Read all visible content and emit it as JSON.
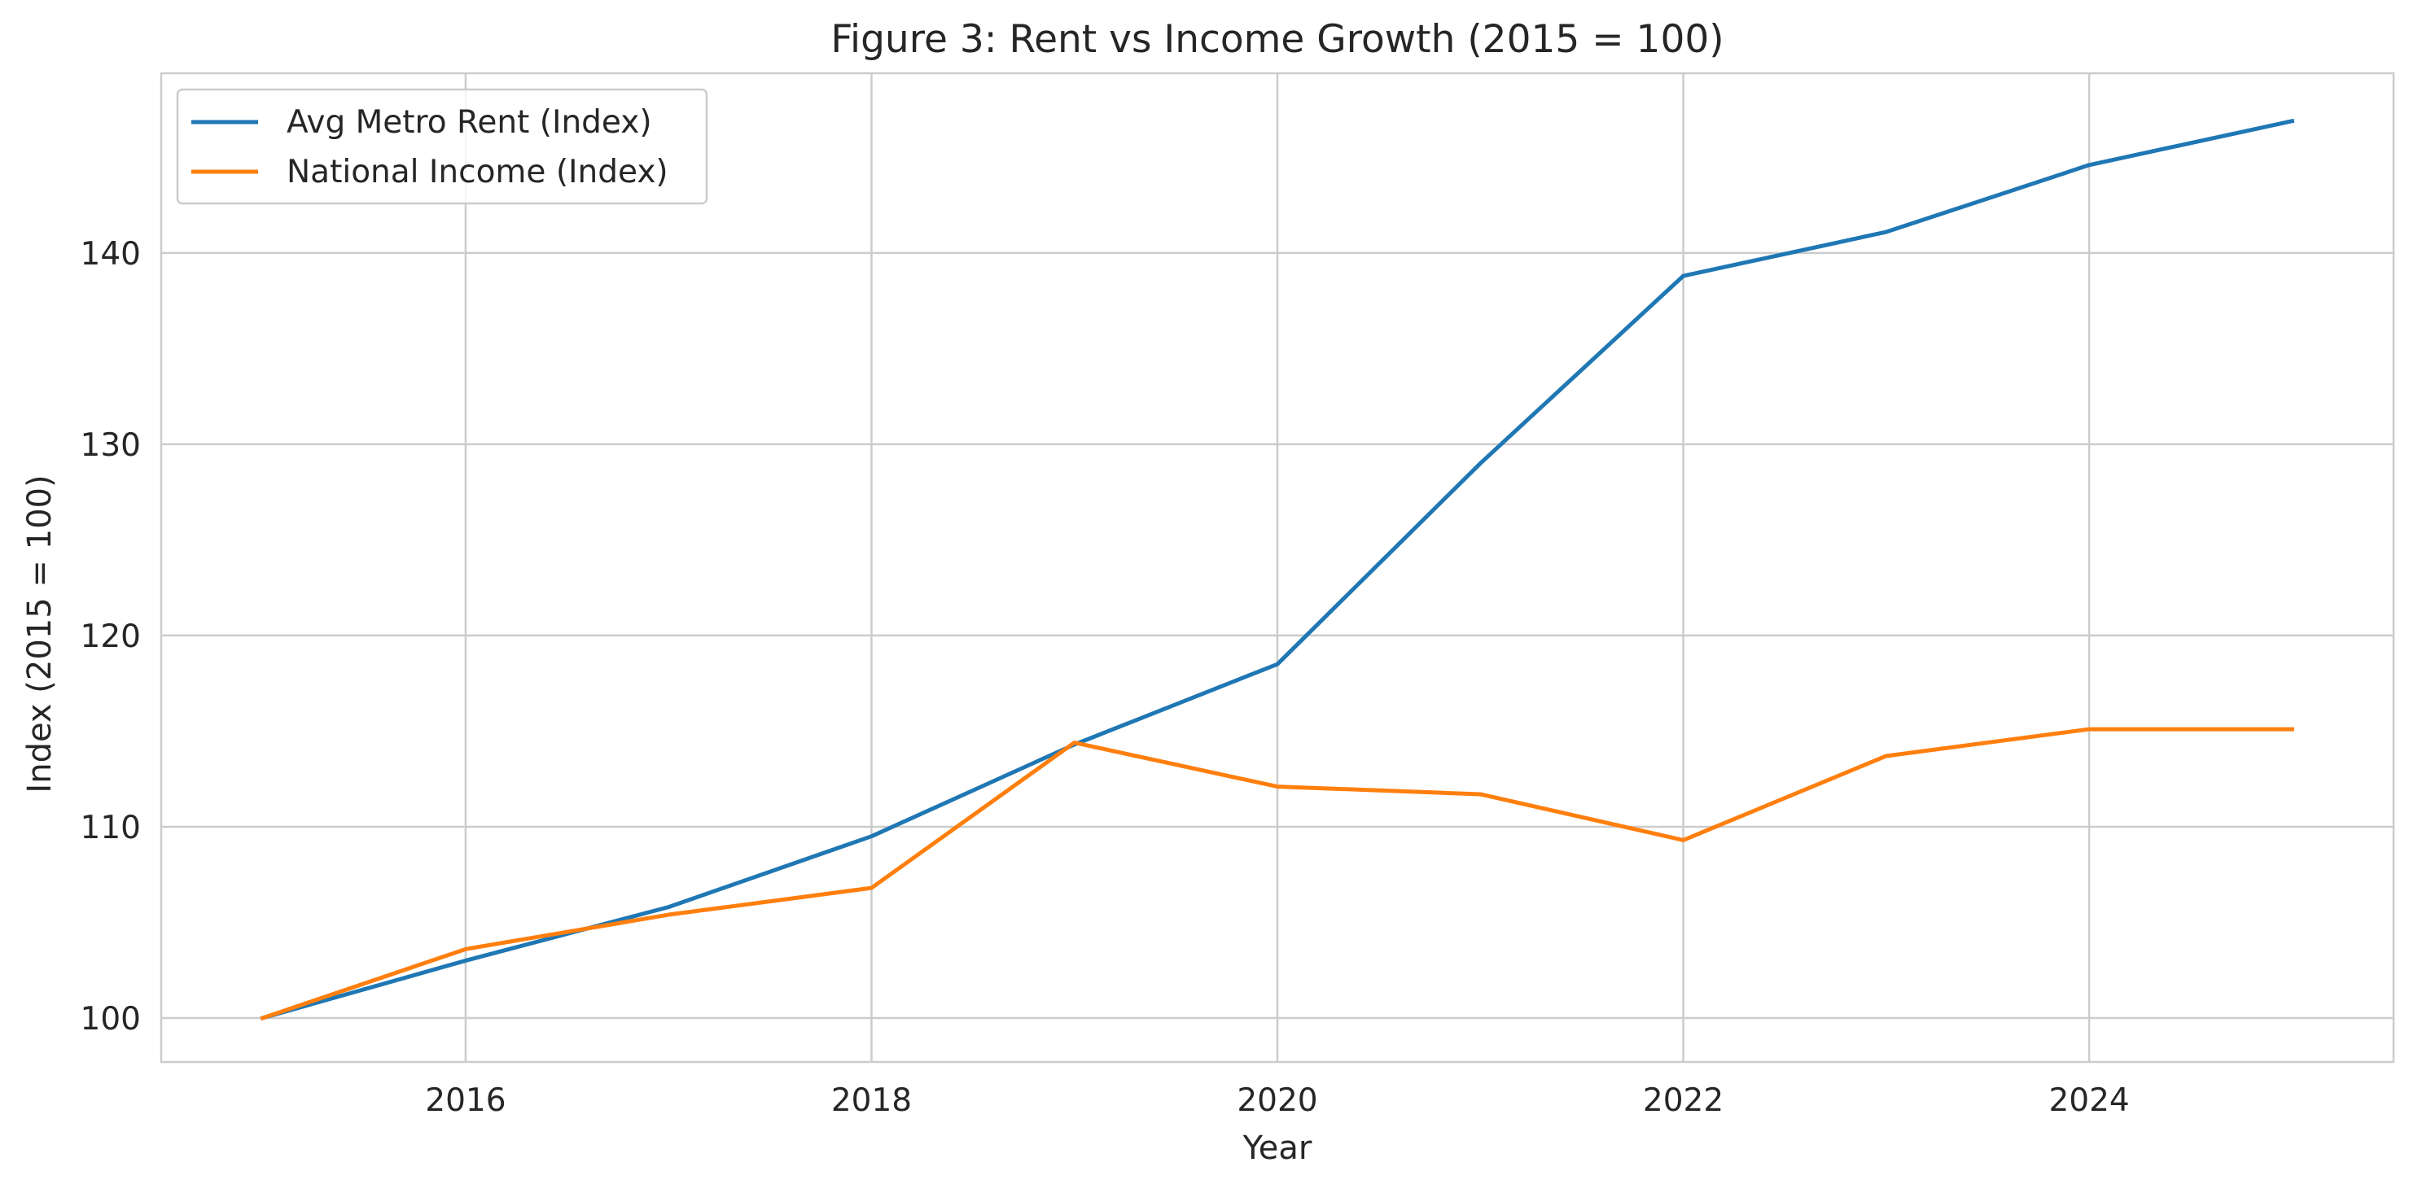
{
  "chart_data": {
    "type": "line",
    "title": "Figure 3: Rent vs Income Growth (2015 = 100)",
    "xlabel": "Year",
    "ylabel": "Index (2015 = 100)",
    "x": [
      2015,
      2016,
      2017,
      2018,
      2019,
      2020,
      2021,
      2022,
      2023,
      2024,
      2025
    ],
    "series": [
      {
        "name": "Avg Metro Rent (Index)",
        "color": "#1f77b4",
        "values": [
          100.0,
          103.0,
          105.8,
          109.5,
          114.3,
          118.5,
          129.0,
          138.8,
          141.1,
          144.6,
          146.9
        ]
      },
      {
        "name": "National Income (Index)",
        "color": "#ff7f0e",
        "values": [
          100.0,
          103.6,
          105.4,
          106.8,
          114.4,
          112.1,
          111.7,
          109.3,
          113.7,
          115.1,
          115.1
        ]
      }
    ],
    "xlim": [
      2014.5,
      2025.5
    ],
    "ylim": [
      97.7,
      149.4
    ],
    "xticks": [
      2016,
      2018,
      2020,
      2022,
      2024
    ],
    "yticks": [
      100,
      110,
      120,
      130,
      140
    ],
    "grid": true,
    "legend_position": "top-left"
  }
}
